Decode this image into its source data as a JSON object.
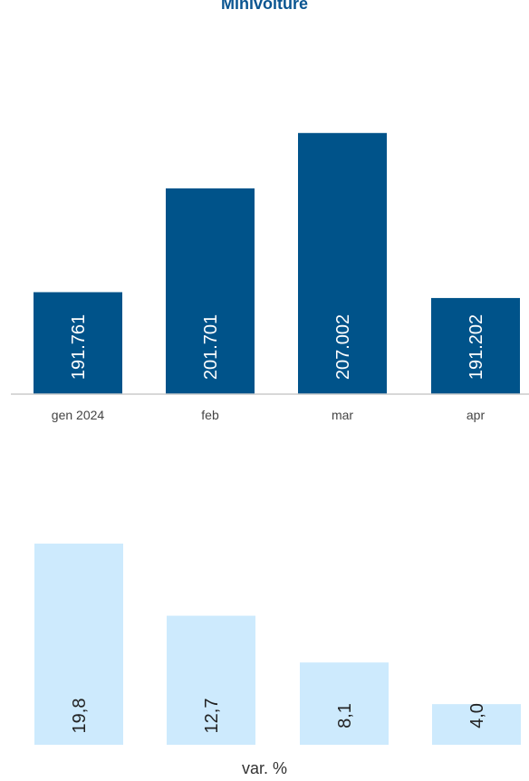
{
  "chart_data": [
    {
      "type": "bar",
      "title": "Minivolture",
      "categories": [
        "gen 2024",
        "feb",
        "mar",
        "apr"
      ],
      "values": [
        191761,
        201701,
        207002,
        191202
      ],
      "value_labels": [
        "191.761",
        "201.701",
        "207.002",
        "191.202"
      ],
      "ylim": [
        182000,
        209500
      ],
      "grid": false,
      "colors": {
        "bar": "#00538a",
        "label": "#ffffff",
        "axis": "#cccccc",
        "tick": "#444444"
      }
    },
    {
      "type": "bar",
      "xlabel": "var. %",
      "categories": [
        "gen 2024",
        "feb",
        "mar",
        "apr"
      ],
      "values": [
        19.8,
        12.7,
        8.1,
        4.0
      ],
      "value_labels": [
        "19,8",
        "12,7",
        "8,1",
        "4,0"
      ],
      "ylim": [
        0,
        20.6
      ],
      "grid": false,
      "colors": {
        "bar": "#cdeafd",
        "label": "#222222"
      }
    }
  ]
}
